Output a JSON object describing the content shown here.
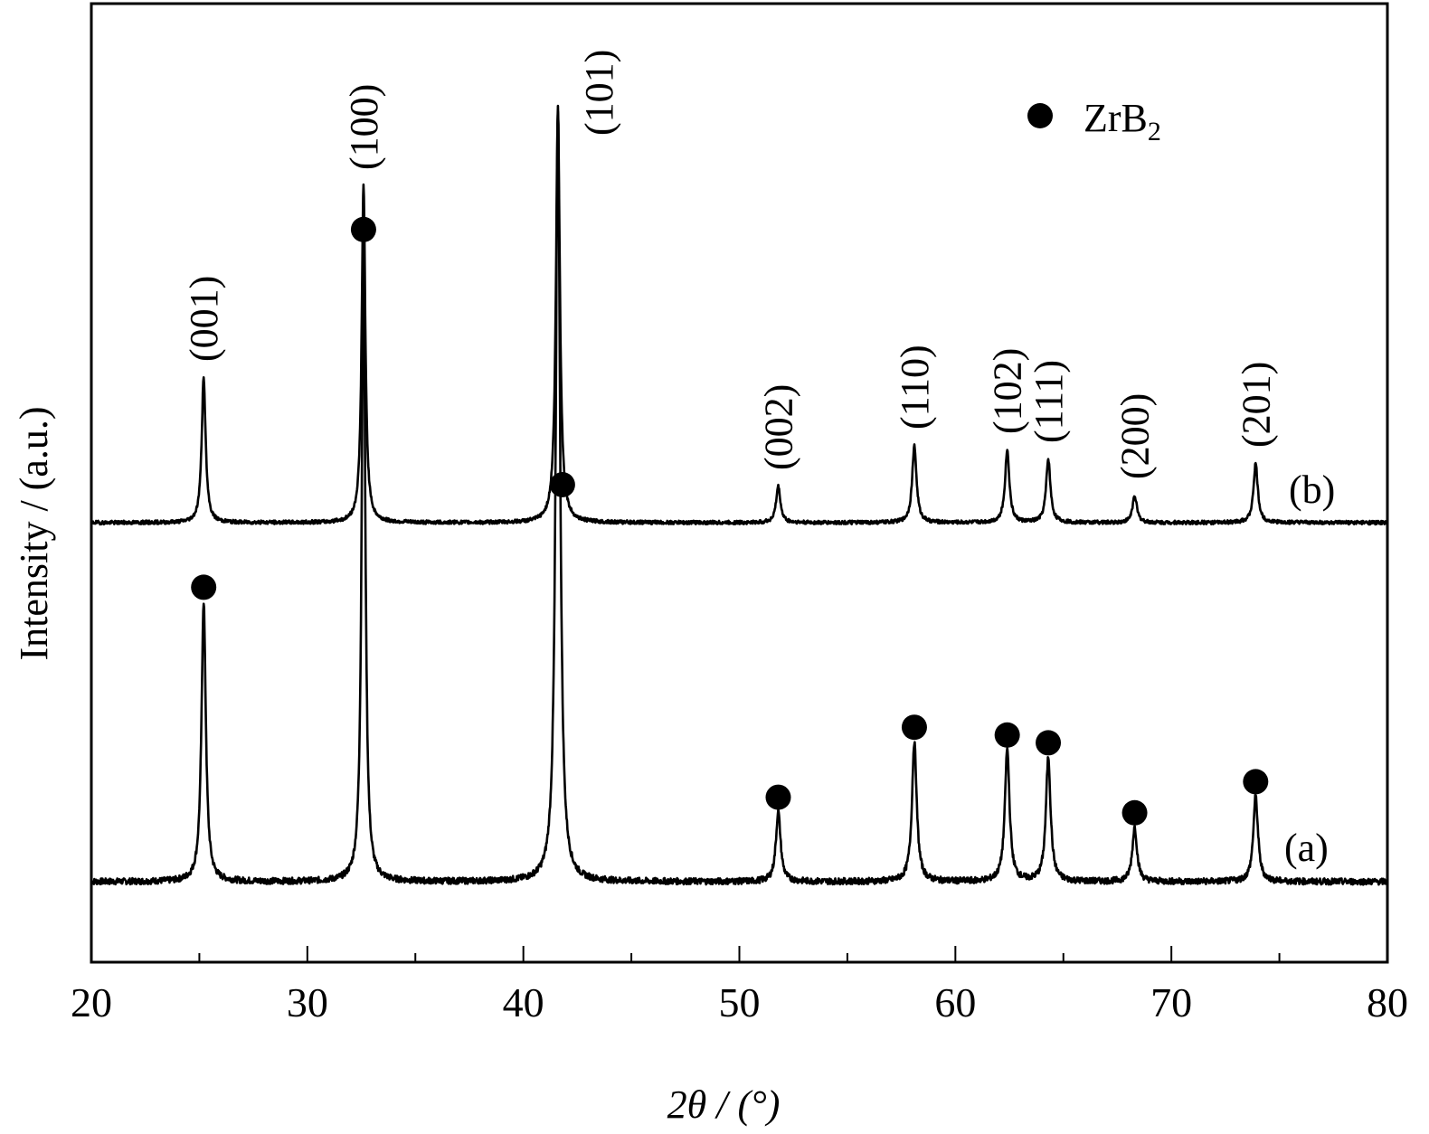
{
  "chart_data": {
    "type": "line",
    "xlabel": "2θ / (°)",
    "ylabel": "Intensity / (a.u.)",
    "xlim": [
      20,
      80
    ],
    "x_ticks": [
      "20",
      "30",
      "40",
      "50",
      "60",
      "70",
      "80"
    ],
    "grid": false,
    "legend": {
      "placement": "top-right",
      "marker": "filled-circle",
      "label_main": "ZrB",
      "label_sub": "2"
    },
    "series": [
      {
        "name": "(a)",
        "baseline": 0,
        "peaks": [
          {
            "x": 25.2,
            "height": 36,
            "width": 0.12
          },
          {
            "x": 32.6,
            "height": 82,
            "width": 0.1
          },
          {
            "x": 41.6,
            "height": 100,
            "width": 0.12
          },
          {
            "x": 51.8,
            "height": 9,
            "width": 0.13
          },
          {
            "x": 58.1,
            "height": 18,
            "width": 0.13
          },
          {
            "x": 62.4,
            "height": 17,
            "width": 0.13
          },
          {
            "x": 64.3,
            "height": 16,
            "width": 0.13
          },
          {
            "x": 68.3,
            "height": 7,
            "width": 0.13
          },
          {
            "x": 73.9,
            "height": 11,
            "width": 0.13
          }
        ]
      },
      {
        "name": "(b)",
        "baseline": 0,
        "peaks": [
          {
            "x": 25.2,
            "height": 32,
            "width": 0.11
          },
          {
            "x": 32.6,
            "height": 75,
            "width": 0.1
          },
          {
            "x": 41.6,
            "height": 91,
            "width": 0.11
          },
          {
            "x": 51.8,
            "height": 8,
            "width": 0.12
          },
          {
            "x": 58.1,
            "height": 17,
            "width": 0.12
          },
          {
            "x": 62.4,
            "height": 16,
            "width": 0.12
          },
          {
            "x": 64.3,
            "height": 14,
            "width": 0.12
          },
          {
            "x": 68.3,
            "height": 6,
            "width": 0.12
          },
          {
            "x": 73.9,
            "height": 13,
            "width": 0.12
          }
        ]
      }
    ],
    "markers_on_a": [
      25.2,
      32.6,
      41.6,
      51.8,
      58.1,
      62.4,
      64.3,
      68.3,
      73.9
    ],
    "peak_labels": [
      {
        "x": 25.2,
        "text": "(001)"
      },
      {
        "x": 32.6,
        "text": "(100)"
      },
      {
        "x": 41.6,
        "text": "(101)"
      },
      {
        "x": 51.8,
        "text": "(002)"
      },
      {
        "x": 58.1,
        "text": "(110)"
      },
      {
        "x": 62.4,
        "text": "(102)"
      },
      {
        "x": 64.3,
        "text": "(111)"
      },
      {
        "x": 68.3,
        "text": "(200)"
      },
      {
        "x": 73.9,
        "text": "(201)"
      }
    ]
  }
}
